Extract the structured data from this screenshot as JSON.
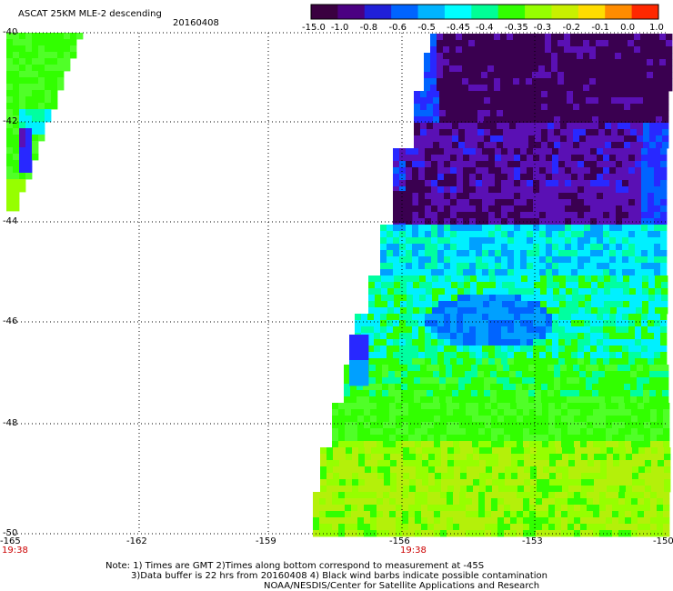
{
  "header": {
    "title": "ASCAT 25KM MLE-2 descending",
    "date": "20160408"
  },
  "colorbar": {
    "labels": [
      "-15.0",
      "-1.0",
      "-0.8",
      "-0.6",
      "-0.5",
      "-0.45",
      "-0.4",
      "-0.35",
      "-0.3",
      "-0.2",
      "-0.1",
      "0.0",
      "1.0"
    ],
    "colors": [
      "#3a0040",
      "#4b0082",
      "#2020d8",
      "#0064ff",
      "#00b4ff",
      "#00ffff",
      "#00ff96",
      "#32ff00",
      "#96ff00",
      "#c8f000",
      "#ffdc00",
      "#ff8c00",
      "#ff2800"
    ]
  },
  "axes": {
    "lat_labels": [
      "-40",
      "-42",
      "-44",
      "-46",
      "-48",
      "-50"
    ],
    "lon_labels": [
      "-165",
      "-162",
      "-159",
      "-156",
      "-153",
      "-150"
    ],
    "times": [
      "19:38",
      "19:38"
    ]
  },
  "notes": {
    "line1": "Note: 1) Times are GMT 2)Times along bottom correspond to measurement at -45S",
    "line2": "3)Data buffer is 22 hrs from 20160408 4) Black wind barbs indicate possible contamination",
    "line3": "NOAA/NESDIS/Center for Satellite Applications and Research"
  }
}
